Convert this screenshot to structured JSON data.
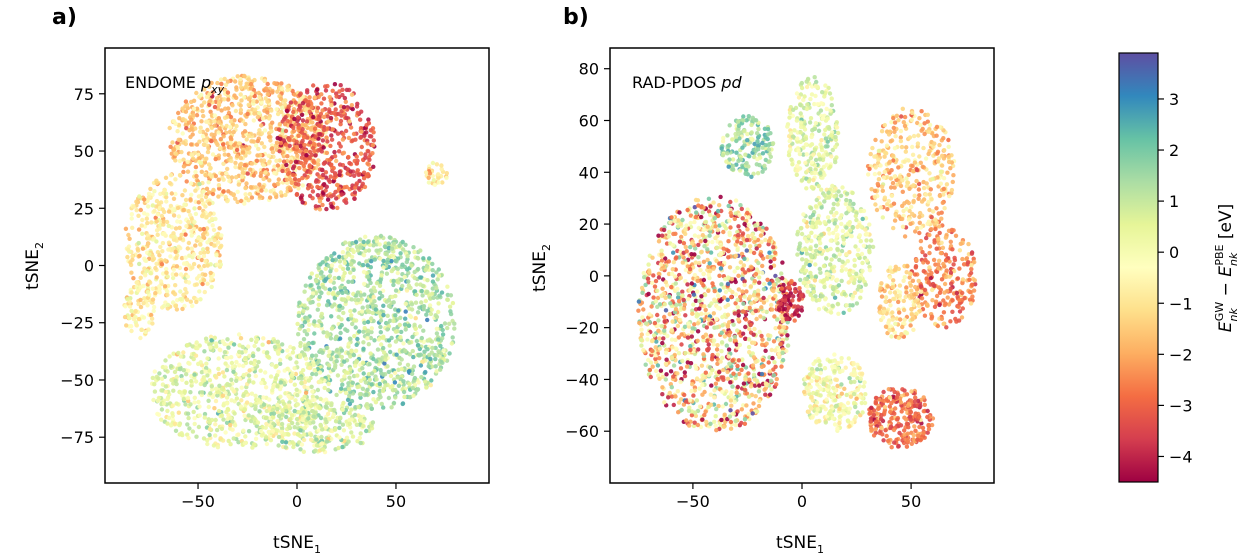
{
  "chart_data": [
    {
      "type": "scatter",
      "panel_label": "a)",
      "annotation_main": "ENDOME ",
      "annotation_italic": "p",
      "annotation_sub": "xy",
      "xlabel_main": "tSNE",
      "xlabel_sub": "1",
      "ylabel_main": "tSNE",
      "ylabel_sub": "2",
      "xlim": [
        -97,
        97
      ],
      "ylim": [
        -95,
        95
      ],
      "x_ticks": [
        -50,
        0,
        50
      ],
      "x_tick_labels": [
        "−50",
        "0",
        "50"
      ],
      "y_ticks": [
        -75,
        -50,
        -25,
        0,
        25,
        50,
        75
      ],
      "y_tick_labels": [
        "−75",
        "−50",
        "−25",
        "0",
        "25",
        "50",
        "75"
      ],
      "grid": false,
      "clusters": [
        {
          "cx": -25,
          "cy": 55,
          "rx": 40,
          "ry": 28,
          "c": -1.5,
          "n": 900
        },
        {
          "cx": 15,
          "cy": 52,
          "rx": 25,
          "ry": 28,
          "c": -3.2,
          "n": 500
        },
        {
          "cx": -62,
          "cy": 10,
          "rx": 25,
          "ry": 30,
          "c": -0.8,
          "n": 500
        },
        {
          "cx": 40,
          "cy": -25,
          "rx": 40,
          "ry": 38,
          "c": 1.2,
          "n": 1100
        },
        {
          "cx": -30,
          "cy": -55,
          "rx": 45,
          "ry": 25,
          "c": 0.4,
          "n": 700
        },
        {
          "cx": 10,
          "cy": -70,
          "rx": 30,
          "ry": 12,
          "c": 0.5,
          "n": 300
        },
        {
          "cx": -80,
          "cy": -20,
          "rx": 8,
          "ry": 12,
          "c": -0.6,
          "n": 80
        },
        {
          "cx": 70,
          "cy": 40,
          "rx": 6,
          "ry": 5,
          "c": -1.0,
          "n": 30
        }
      ]
    },
    {
      "type": "scatter",
      "panel_label": "b)",
      "annotation_main": "RAD-PDOS ",
      "annotation_italic": "pd",
      "xlabel_main": "tSNE",
      "xlabel_sub": "1",
      "ylabel_main": "tSNE",
      "ylabel_sub": "2",
      "xlim": [
        -88,
        88
      ],
      "ylim": [
        -80,
        88
      ],
      "x_ticks": [
        -50,
        0,
        50
      ],
      "x_tick_labels": [
        "−50",
        "0",
        "50"
      ],
      "y_ticks": [
        -60,
        -40,
        -20,
        0,
        20,
        40,
        60,
        80
      ],
      "y_tick_labels": [
        "−60",
        "−40",
        "−20",
        "0",
        "20",
        "40",
        "60",
        "80"
      ],
      "grid": false,
      "clusters": [
        {
          "cx": -40,
          "cy": -15,
          "rx": 35,
          "ry": 46,
          "c": -1.2,
          "cs": 2.0,
          "n": 1400
        },
        {
          "cx": -25,
          "cy": 50,
          "rx": 12,
          "ry": 12,
          "c": 1.5,
          "n": 160
        },
        {
          "cx": 5,
          "cy": 55,
          "rx": 12,
          "ry": 22,
          "c": 0.4,
          "n": 250
        },
        {
          "cx": 15,
          "cy": 10,
          "rx": 18,
          "ry": 25,
          "c": 0.5,
          "n": 400
        },
        {
          "cx": 50,
          "cy": 40,
          "rx": 20,
          "ry": 25,
          "c": -1.5,
          "n": 350
        },
        {
          "cx": 65,
          "cy": 0,
          "rx": 15,
          "ry": 20,
          "c": -2.5,
          "n": 250
        },
        {
          "cx": 45,
          "cy": -55,
          "rx": 15,
          "ry": 12,
          "c": -2.8,
          "n": 250
        },
        {
          "cx": 15,
          "cy": -45,
          "rx": 15,
          "ry": 15,
          "c": 0.0,
          "n": 250
        },
        {
          "cx": 45,
          "cy": -10,
          "rx": 10,
          "ry": 15,
          "c": -1.2,
          "n": 150
        },
        {
          "cx": -5,
          "cy": -10,
          "rx": 6,
          "ry": 8,
          "c": -3.8,
          "n": 80
        }
      ]
    }
  ],
  "colorbar": {
    "min": -4.5,
    "max": 3.9,
    "ticks": [
      3,
      2,
      1,
      0,
      -1,
      -2,
      -3,
      -4
    ],
    "tick_labels": [
      "3",
      "2",
      "1",
      "0",
      "−1",
      "−2",
      "−3",
      "−4"
    ],
    "colormap": "Spectral",
    "label_E1": "E",
    "label_sub1": "nk",
    "label_sup1": "GW",
    "label_minus": " − ",
    "label_E2": "E",
    "label_sub2": "nk",
    "label_sup2": "PBE",
    "label_unit": " [eV]",
    "stops": [
      "#9e0142",
      "#d53e4f",
      "#f46d43",
      "#fdae61",
      "#fee08b",
      "#ffffbf",
      "#e6f598",
      "#abdda4",
      "#66c2a5",
      "#3288bd",
      "#5e4fa2"
    ]
  }
}
